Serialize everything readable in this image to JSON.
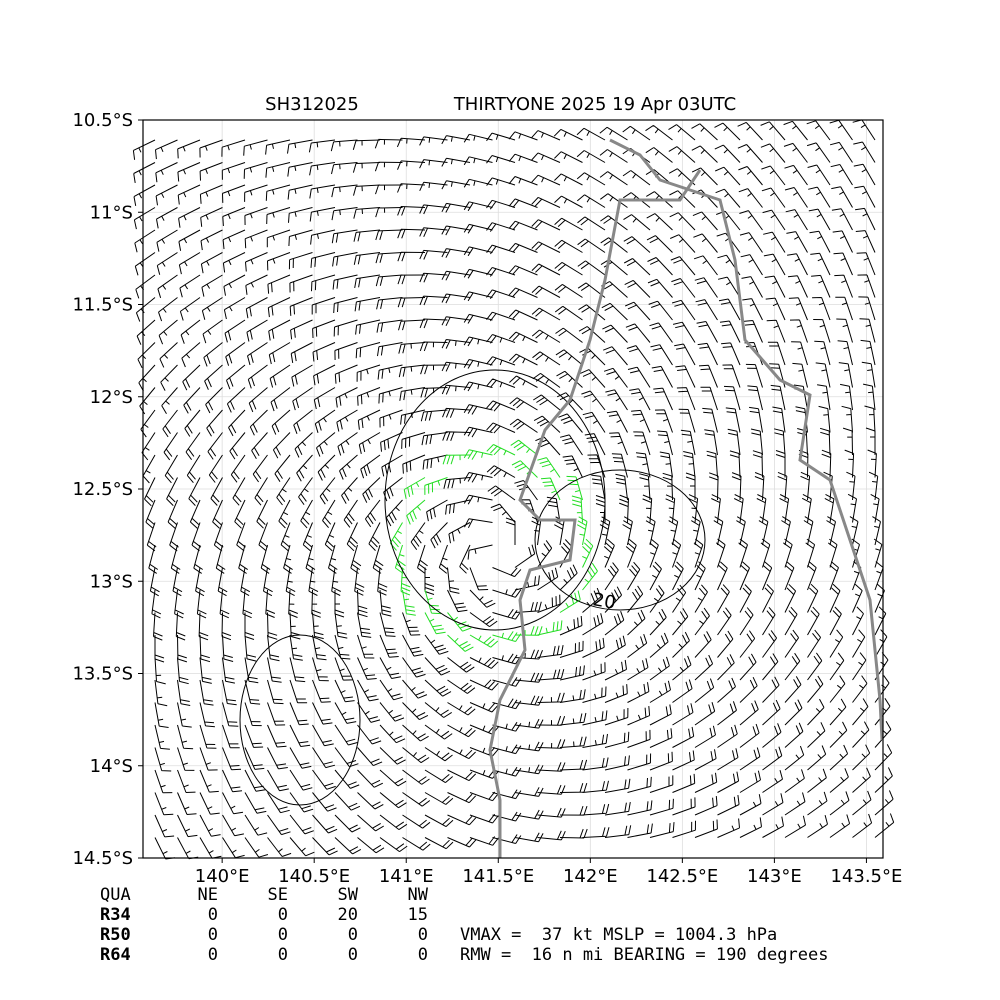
{
  "map": {
    "title_id": "SH312025",
    "title": "THIRTYONE 2025 19 Apr 03UTC",
    "xlim": [
      139.57,
      143.59
    ],
    "ylim": [
      -14.5,
      -10.5
    ],
    "xticks": [
      {
        "value": 140,
        "label": "140°E"
      },
      {
        "value": 140.5,
        "label": "140.5°E"
      },
      {
        "value": 141,
        "label": "141°E"
      },
      {
        "value": 141.5,
        "label": "141.5°E"
      },
      {
        "value": 142,
        "label": "142°E"
      },
      {
        "value": 142.5,
        "label": "142.5°E"
      },
      {
        "value": 143,
        "label": "143°E"
      },
      {
        "value": 143.5,
        "label": "143.5°E"
      }
    ],
    "yticks": [
      {
        "value": -10.5,
        "label": "10.5°S"
      },
      {
        "value": -11,
        "label": "11°S"
      },
      {
        "value": -11.5,
        "label": "11.5°S"
      },
      {
        "value": -12,
        "label": "12°S"
      },
      {
        "value": -12.5,
        "label": "12.5°S"
      },
      {
        "value": -13,
        "label": "13°S"
      },
      {
        "value": -13.5,
        "label": "13.5°S"
      },
      {
        "value": -14,
        "label": "14°S"
      },
      {
        "value": -14.5,
        "label": "14.5°S"
      }
    ],
    "contour_label": "20",
    "table": {
      "header": [
        "QUA",
        "NE",
        "SE",
        "SW",
        "NW"
      ],
      "rows": [
        [
          "R34",
          "0",
          "0",
          "20",
          "15"
        ],
        [
          "R50",
          "0",
          "0",
          "0",
          "0"
        ],
        [
          "R64",
          "0",
          "0",
          "0",
          "0"
        ]
      ]
    },
    "info": [
      "VMAX =  37 kt MSLP = 1004.3 hPa",
      "RMW =  16 n mi BEARING = 190 degrees"
    ]
  }
}
